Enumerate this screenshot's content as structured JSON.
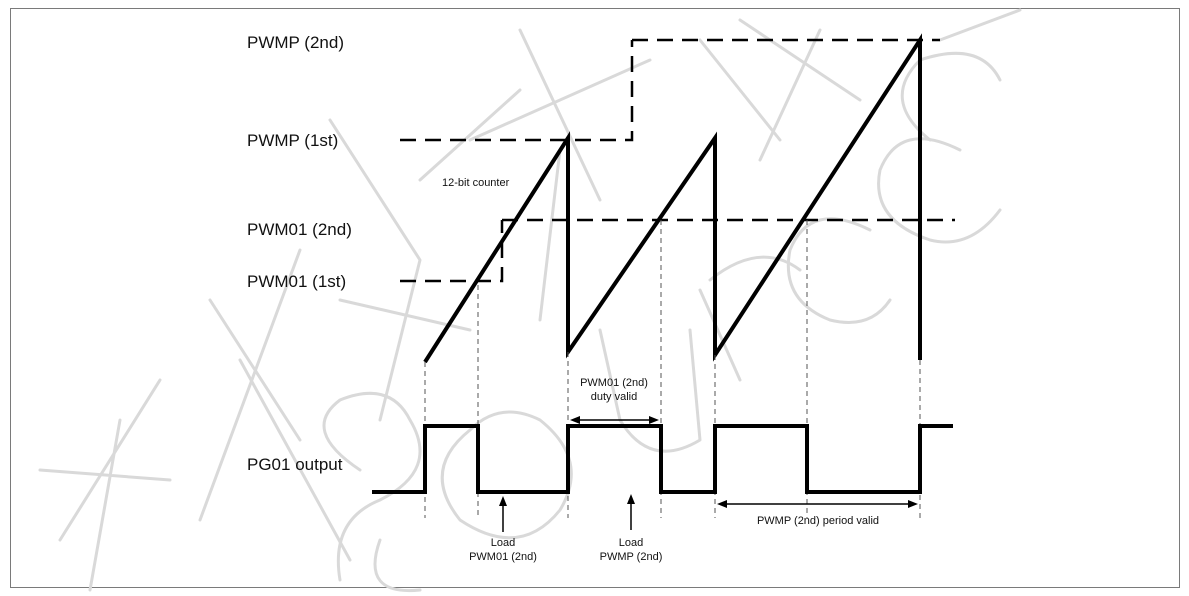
{
  "labels": {
    "pwmp_2nd": "PWMP (2nd)",
    "pwmp_1st": "PWMP (1st)",
    "pwm01_2nd": "PWM01 (2nd)",
    "pwm01_1st": "PWM01 (1st)",
    "pg01_output": "PG01 output",
    "counter": "12-bit counter",
    "duty_valid_line1": "PWM01 (2nd)",
    "duty_valid_line2": "duty valid",
    "load_pwm01_line1": "Load",
    "load_pwm01_line2": "PWM01 (2nd)",
    "load_pwmp_line1": "Load",
    "load_pwmp_line2": "PWMP (2nd)",
    "period_valid": "PWMP (2nd) period valid"
  },
  "watermark": {
    "text": "矽源特 source"
  },
  "colors": {
    "line": "#000000",
    "guide": "#555555",
    "watermark": "#d9d9d9"
  }
}
